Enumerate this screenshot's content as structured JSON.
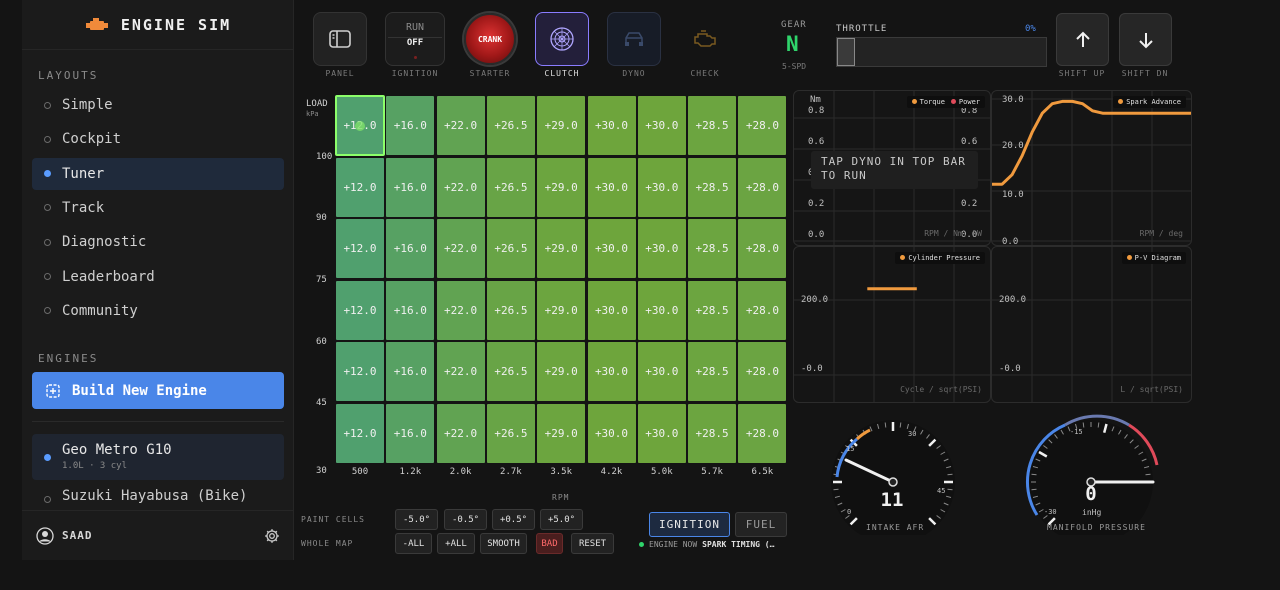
{
  "app": {
    "name": "ENGINE SIM"
  },
  "sidebar": {
    "layouts_label": "LAYOUTS",
    "layouts": [
      {
        "label": "Simple",
        "active": false
      },
      {
        "label": "Cockpit",
        "active": false
      },
      {
        "label": "Tuner",
        "active": true
      },
      {
        "label": "Track",
        "active": false
      },
      {
        "label": "Diagnostic",
        "active": false
      },
      {
        "label": "Leaderboard",
        "active": false
      },
      {
        "label": "Community",
        "active": false
      }
    ],
    "engines_label": "ENGINES",
    "build_label": "Build New Engine",
    "engines": [
      {
        "name": "Geo Metro G10",
        "sub": "1.0L · 3 cyl"
      },
      {
        "name": "Suzuki Hayabusa (Bike)"
      }
    ],
    "user": "SAAD"
  },
  "topbar": {
    "panel_label": "PANEL",
    "ignition": {
      "run": "RUN",
      "off": "OFF",
      "label": "IGNITION"
    },
    "starter": {
      "button": "CRANK",
      "label": "STARTER"
    },
    "clutch_label": "CLUTCH",
    "dyno_label": "DYNO",
    "check_label": "CHECK",
    "gear": {
      "label": "GEAR",
      "value": "N",
      "sub": "5-SPD"
    },
    "throttle": {
      "label": "THROTTLE",
      "value": "0%",
      "level": 0
    },
    "shift_up_label": "SHIFT UP",
    "shift_dn_label": "SHIFT DN",
    "colors": {
      "accent": "#4a86e8",
      "gear": "#2fd46b",
      "clutch": "#8a7cff",
      "crank": "#c62828"
    }
  },
  "map": {
    "y_title": "LOAD",
    "y_unit": "kPa",
    "y_ticks": [
      "100",
      "90",
      "75",
      "60",
      "45",
      "30"
    ],
    "x_ticks": [
      "500",
      "1.2k",
      "2.0k",
      "2.7k",
      "3.5k",
      "4.2k",
      "5.0k",
      "5.7k",
      "6.5k"
    ],
    "x_title": "RPM",
    "rows": [
      [
        "+12.0",
        "+16.0",
        "+22.0",
        "+26.5",
        "+29.0",
        "+30.0",
        "+30.0",
        "+28.5",
        "+28.0"
      ],
      [
        "+12.0",
        "+16.0",
        "+22.0",
        "+26.5",
        "+29.0",
        "+30.0",
        "+30.0",
        "+28.5",
        "+28.0"
      ],
      [
        "+12.0",
        "+16.0",
        "+22.0",
        "+26.5",
        "+29.0",
        "+30.0",
        "+30.0",
        "+28.5",
        "+28.0"
      ],
      [
        "+12.0",
        "+16.0",
        "+22.0",
        "+26.5",
        "+29.0",
        "+30.0",
        "+30.0",
        "+28.5",
        "+28.0"
      ],
      [
        "+12.0",
        "+16.0",
        "+22.0",
        "+26.5",
        "+29.0",
        "+30.0",
        "+30.0",
        "+28.5",
        "+28.0"
      ],
      [
        "+12.0",
        "+16.0",
        "+22.0",
        "+26.5",
        "+29.0",
        "+30.0",
        "+30.0",
        "+28.5",
        "+28.0"
      ]
    ],
    "paint_label": "PAINT CELLS",
    "paint_buttons": [
      "-5.0°",
      "-0.5°",
      "+0.5°",
      "+5.0°"
    ],
    "whole_label": "WHOLE MAP",
    "whole_buttons": [
      "-ALL",
      "+ALL",
      "SMOOTH",
      "BAD",
      "RESET"
    ],
    "mode_ignition": "IGNITION",
    "mode_fuel": "FUEL",
    "engine_now_label": "ENGINE NOW",
    "engine_now_value": "SPARK TIMING (…"
  },
  "charts": {
    "dyno": {
      "y_unit": "Nm",
      "left_ticks": [
        "0.8",
        "0.6",
        "0.4",
        "0.2",
        "0.0"
      ],
      "right_ticks": [
        "0.8",
        "0.6",
        "0.4",
        "0.2",
        "0.0"
      ],
      "legend": [
        "Torque",
        "Power"
      ],
      "x_label": "RPM / Nm, kW",
      "overlay": "TAP DYNO IN TOP BAR TO RUN"
    },
    "spark": {
      "y_ticks": [
        "30.0",
        "20.0",
        "10.0",
        "0.0"
      ],
      "legend": "Spark Advance",
      "x_label": "RPM / deg"
    },
    "cylinder": {
      "y_ticks": [
        "200.0",
        "-0.0"
      ],
      "legend": "Cylinder Pressure",
      "x_label": "Cycle / sqrt(PSI)"
    },
    "pv": {
      "y_ticks": [
        "200.0",
        "-0.0"
      ],
      "legend": "P-V Diagram",
      "x_label": "L / sqrt(PSI)"
    },
    "colors": {
      "torque": "#f09a3e",
      "power": "#e04a5a",
      "spark": "#f09a3e"
    }
  },
  "chart_data": [
    {
      "type": "line",
      "series": [
        {
          "name": "Spark Advance",
          "x": [
            0,
            0.05,
            0.1,
            0.15,
            0.2,
            0.25,
            0.3,
            0.35,
            0.4,
            0.45,
            0.5,
            0.55,
            0.6,
            1.0
          ],
          "values": [
            12,
            12,
            14,
            18,
            23,
            27,
            29,
            29.5,
            29.5,
            29,
            27.5,
            27,
            27,
            27
          ]
        }
      ],
      "xlabel": "RPM / deg",
      "ylim": [
        0,
        30
      ]
    },
    {
      "type": "line",
      "series": [
        {
          "name": "Cylinder Pressure",
          "x": [
            0.37,
            0.62
          ],
          "values": [
            230,
            230
          ]
        }
      ],
      "xlabel": "Cycle / sqrt(PSI)"
    }
  ],
  "gauges": {
    "afr": {
      "ticks": [
        "0",
        "15",
        "30",
        "45"
      ],
      "value": "11",
      "title": "INTAKE AFR"
    },
    "map": {
      "ticks": [
        "-15",
        "-30",
        "0"
      ],
      "value": "0",
      "unit": "inHg",
      "title": "MANIFOLD PRESSURE"
    }
  }
}
